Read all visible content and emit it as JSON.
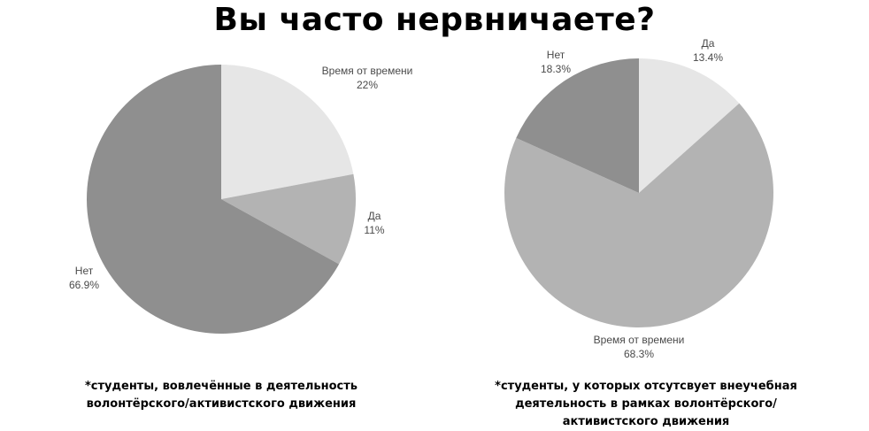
{
  "title": "Вы часто нервничаете?",
  "chart_data": [
    {
      "type": "pie",
      "title": "",
      "caption_lines": [
        "*студенты, вовлечённые в деятельность",
        "волонтёрского/активистского движения"
      ],
      "slices": [
        {
          "label": "Время от времени",
          "value": 22,
          "value_label": "22%",
          "color": "#e6e6e6"
        },
        {
          "label": "Да",
          "value": 11,
          "value_label": "11%",
          "color": "#b3b3b3"
        },
        {
          "label": "Нет",
          "value": 66.9,
          "value_label": "66.9%",
          "color": "#8f8f8f"
        }
      ]
    },
    {
      "type": "pie",
      "title": "",
      "caption_lines": [
        "*студенты, у которых отсутсвует внеучебная",
        "деятельность в рамках волонтёрского/",
        "активистского движения"
      ],
      "slices": [
        {
          "label": "Да",
          "value": 13.4,
          "value_label": "13.4%",
          "color": "#e6e6e6"
        },
        {
          "label": "Время от времени",
          "value": 68.3,
          "value_label": "68.3%",
          "color": "#b3b3b3"
        },
        {
          "label": "Нет",
          "value": 18.3,
          "value_label": "18.3%",
          "color": "#8f8f8f"
        }
      ]
    }
  ]
}
